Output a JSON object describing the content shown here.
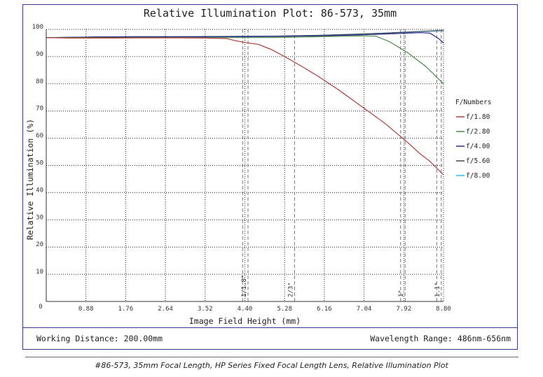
{
  "chart_data": {
    "type": "line",
    "title": "Relative Illumination Plot: 86-573, 35mm",
    "xlabel": "Image Field Height (mm)",
    "ylabel": "Relative Illumination (%)",
    "xlim": [
      0,
      8.8
    ],
    "ylim": [
      0,
      100
    ],
    "x_ticks": [
      "0.88",
      "1.76",
      "2.64",
      "3.52",
      "4.40",
      "5.28",
      "6.16",
      "7.04",
      "7.92",
      "8.80"
    ],
    "y_ticks": [
      "10",
      "20",
      "30",
      "40",
      "50",
      "60",
      "70",
      "80",
      "90",
      "100"
    ],
    "origin_label": "0",
    "grid": true,
    "legend_title": "F/Numbers",
    "legend_position": "right",
    "series": [
      {
        "name": "f/1.80",
        "color": "#b03a3a",
        "points": [
          [
            0,
            97
          ],
          [
            0.5,
            96.8
          ],
          [
            1.0,
            96.8
          ],
          [
            1.5,
            96.8
          ],
          [
            2.0,
            96.9
          ],
          [
            2.5,
            96.9
          ],
          [
            3.0,
            96.9
          ],
          [
            3.5,
            96.8
          ],
          [
            4.0,
            96.6
          ],
          [
            4.2,
            95.8
          ],
          [
            4.4,
            95.2
          ],
          [
            4.7,
            94.5
          ],
          [
            5.0,
            92.5
          ],
          [
            5.28,
            90.0
          ],
          [
            5.6,
            87.0
          ],
          [
            6.0,
            83.0
          ],
          [
            6.5,
            77.5
          ],
          [
            7.0,
            71.5
          ],
          [
            7.5,
            65.5
          ],
          [
            8.0,
            58.5
          ],
          [
            8.3,
            54.0
          ],
          [
            8.5,
            51.5
          ],
          [
            8.8,
            46.5
          ]
        ]
      },
      {
        "name": "f/2.80",
        "color": "#4a8a4a",
        "points": [
          [
            0,
            97
          ],
          [
            1.0,
            97
          ],
          [
            2.0,
            97
          ],
          [
            3.0,
            97
          ],
          [
            4.0,
            97
          ],
          [
            5.0,
            97
          ],
          [
            6.0,
            97.3
          ],
          [
            7.0,
            97.6
          ],
          [
            7.3,
            97.5
          ],
          [
            7.6,
            95.5
          ],
          [
            8.0,
            91.5
          ],
          [
            8.4,
            86.5
          ],
          [
            8.8,
            80.0
          ]
        ]
      },
      {
        "name": "f/4.00",
        "color": "#2a2a8a",
        "points": [
          [
            0,
            97
          ],
          [
            1.0,
            97.2
          ],
          [
            2.0,
            97.3
          ],
          [
            3.0,
            97.3
          ],
          [
            4.0,
            97.3
          ],
          [
            5.0,
            97.4
          ],
          [
            6.0,
            97.6
          ],
          [
            7.0,
            98.0
          ],
          [
            7.5,
            98.3
          ],
          [
            8.0,
            98.6
          ],
          [
            8.3,
            98.8
          ],
          [
            8.5,
            98.6
          ],
          [
            8.7,
            96.5
          ],
          [
            8.8,
            95.0
          ]
        ]
      },
      {
        "name": "f/5.60",
        "color": "#3a4a5a",
        "points": [
          [
            0,
            97
          ],
          [
            1.0,
            97.2
          ],
          [
            2.0,
            97.3
          ],
          [
            3.0,
            97.3
          ],
          [
            4.0,
            97.4
          ],
          [
            5.0,
            97.5
          ],
          [
            6.0,
            97.8
          ],
          [
            7.0,
            98.3
          ],
          [
            7.5,
            98.6
          ],
          [
            8.0,
            99.0
          ],
          [
            8.5,
            99.4
          ],
          [
            8.8,
            99.6
          ]
        ]
      },
      {
        "name": "f/8.00",
        "color": "#33bbee",
        "points": [
          [
            0,
            97
          ],
          [
            1.0,
            97.1
          ],
          [
            2.0,
            97.2
          ],
          [
            3.0,
            97.3
          ],
          [
            4.0,
            97.4
          ],
          [
            5.0,
            97.5
          ],
          [
            6.0,
            97.8
          ],
          [
            7.0,
            98.3
          ],
          [
            7.5,
            98.6
          ],
          [
            8.0,
            99.0
          ],
          [
            8.5,
            99.3
          ],
          [
            8.8,
            99.5
          ]
        ]
      }
    ],
    "sensor_markers": [
      {
        "label": "1/1.8\"",
        "x": 4.47
      },
      {
        "label": "2/3\"",
        "x": 5.5
      },
      {
        "label": "1\"",
        "x": 7.95
      },
      {
        "label": "1.1\"",
        "x": 8.75
      }
    ],
    "extra_dashed_lines": [
      4.35,
      7.85,
      8.65
    ]
  },
  "footer": {
    "working_distance": "Working Distance: 200.00mm",
    "wavelength_range": "Wavelength Range: 486nm-656nm"
  },
  "caption": "#86-573, 35mm Focal Length, HP Series Fixed Focal Length Lens, Relative Illumination Plot"
}
